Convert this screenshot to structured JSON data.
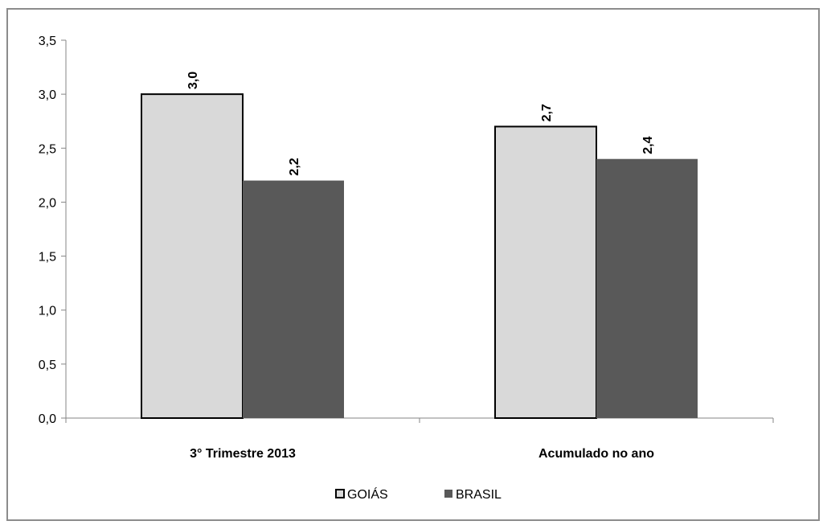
{
  "chart_data": {
    "type": "bar",
    "categories": [
      "3° Trimestre 2013",
      "Acumulado no ano"
    ],
    "series": [
      {
        "name": "GOIÁS",
        "values": [
          3.0,
          2.7
        ],
        "labels": [
          "3,0",
          "2,7"
        ],
        "color": "#d9d9d9",
        "stroke": "#000000"
      },
      {
        "name": "BRASIL",
        "values": [
          2.2,
          2.4
        ],
        "labels": [
          "2,2",
          "2,4"
        ],
        "color": "#595959",
        "stroke": "none"
      }
    ],
    "ylim": [
      0,
      3.5
    ],
    "yticks": [
      0,
      0.5,
      1.0,
      1.5,
      2.0,
      2.5,
      3.0,
      3.5
    ],
    "ytick_labels": [
      "0,0",
      "0,5",
      "1,0",
      "1,5",
      "2,0",
      "2,5",
      "3,0",
      "3,5"
    ],
    "grid": false,
    "legend_position": "bottom"
  }
}
